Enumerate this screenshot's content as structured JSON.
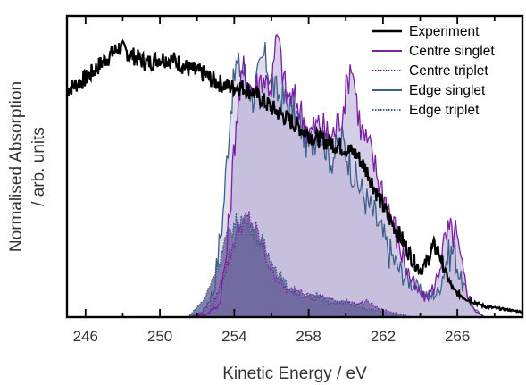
{
  "chart_data": {
    "type": "area",
    "title": "",
    "xlabel": "Kinetic Energy / eV",
    "ylabel_lines": [
      "Normalised Absorption",
      "/ arb. units"
    ],
    "xlim": [
      245,
      269.5
    ],
    "ylim": [
      0,
      1.15
    ],
    "yticks_shown": false,
    "grid": false,
    "legend_position": "top-right",
    "xticks": [
      246,
      250,
      254,
      258,
      262,
      266
    ],
    "xtick_labels": [
      "246",
      "250",
      "254",
      "258",
      "262",
      "266"
    ],
    "series": [
      {
        "name": "Experiment",
        "style": "solid",
        "fill": false,
        "color": "#000000",
        "points": [
          [
            245.0,
            0.87
          ],
          [
            246.0,
            0.91
          ],
          [
            247.0,
            0.98
          ],
          [
            247.8,
            1.03
          ],
          [
            248.5,
            1.0
          ],
          [
            249.3,
            0.97
          ],
          [
            250.0,
            0.99
          ],
          [
            250.8,
            0.98
          ],
          [
            251.5,
            0.95
          ],
          [
            252.3,
            0.93
          ],
          [
            253.0,
            0.9
          ],
          [
            253.7,
            0.88
          ],
          [
            254.4,
            0.88
          ],
          [
            255.0,
            0.86
          ],
          [
            255.8,
            0.81
          ],
          [
            256.6,
            0.77
          ],
          [
            257.4,
            0.73
          ],
          [
            258.2,
            0.69
          ],
          [
            259.0,
            0.67
          ],
          [
            259.8,
            0.65
          ],
          [
            260.6,
            0.62
          ],
          [
            261.2,
            0.55
          ],
          [
            261.8,
            0.45
          ],
          [
            262.4,
            0.37
          ],
          [
            263.0,
            0.3
          ],
          [
            263.6,
            0.22
          ],
          [
            264.0,
            0.18
          ],
          [
            264.3,
            0.2
          ],
          [
            264.7,
            0.27
          ],
          [
            265.0,
            0.25
          ],
          [
            265.4,
            0.16
          ],
          [
            265.8,
            0.1
          ],
          [
            266.5,
            0.07
          ],
          [
            267.5,
            0.04
          ],
          [
            268.5,
            0.03
          ],
          [
            269.5,
            0.02
          ]
        ]
      },
      {
        "name": "Centre singlet",
        "style": "solid",
        "fill": true,
        "color": "#7b1fa2",
        "fill_color": "#b3a6d4",
        "points": [
          [
            251.5,
            0.0
          ],
          [
            252.5,
            0.01
          ],
          [
            253.2,
            0.05
          ],
          [
            253.6,
            0.25
          ],
          [
            253.9,
            0.55
          ],
          [
            254.1,
            0.75
          ],
          [
            254.5,
            0.95
          ],
          [
            255.0,
            0.86
          ],
          [
            255.5,
            0.92
          ],
          [
            256.0,
            0.88
          ],
          [
            256.3,
            1.08
          ],
          [
            256.8,
            0.85
          ],
          [
            257.4,
            0.82
          ],
          [
            258.0,
            0.7
          ],
          [
            258.6,
            0.74
          ],
          [
            259.2,
            0.68
          ],
          [
            259.8,
            0.78
          ],
          [
            260.3,
            0.98
          ],
          [
            260.8,
            0.72
          ],
          [
            261.3,
            0.64
          ],
          [
            261.8,
            0.52
          ],
          [
            262.3,
            0.42
          ],
          [
            262.8,
            0.3
          ],
          [
            263.3,
            0.18
          ],
          [
            263.8,
            0.1
          ],
          [
            264.3,
            0.07
          ],
          [
            264.8,
            0.12
          ],
          [
            265.2,
            0.25
          ],
          [
            265.5,
            0.32
          ],
          [
            265.9,
            0.32
          ],
          [
            266.2,
            0.2
          ],
          [
            266.6,
            0.08
          ],
          [
            267.0,
            0.02
          ],
          [
            267.5,
            0.0
          ]
        ]
      },
      {
        "name": "Centre triplet",
        "style": "dotted",
        "fill": true,
        "color": "#7b1fa2",
        "fill_color": "#7a66a6",
        "points": [
          [
            252.0,
            0.0
          ],
          [
            253.0,
            0.07
          ],
          [
            253.6,
            0.2
          ],
          [
            254.2,
            0.34
          ],
          [
            254.8,
            0.38
          ],
          [
            255.3,
            0.31
          ],
          [
            255.8,
            0.21
          ],
          [
            256.4,
            0.14
          ],
          [
            257.0,
            0.09
          ],
          [
            257.6,
            0.11
          ],
          [
            258.2,
            0.07
          ],
          [
            258.8,
            0.08
          ],
          [
            259.4,
            0.06
          ],
          [
            260.0,
            0.06
          ],
          [
            260.6,
            0.05
          ],
          [
            261.2,
            0.06
          ],
          [
            261.8,
            0.03
          ],
          [
            262.5,
            0.02
          ],
          [
            263.5,
            0.0
          ]
        ]
      },
      {
        "name": "Edge singlet",
        "style": "solid",
        "fill": true,
        "color": "#3f5f8a",
        "fill_color": "#c7c2dc",
        "points": [
          [
            251.5,
            0.0
          ],
          [
            252.3,
            0.02
          ],
          [
            252.9,
            0.1
          ],
          [
            253.4,
            0.4
          ],
          [
            253.8,
            0.8
          ],
          [
            254.1,
            0.96
          ],
          [
            254.5,
            0.94
          ],
          [
            255.0,
            0.84
          ],
          [
            255.6,
            1.0
          ],
          [
            256.2,
            0.86
          ],
          [
            256.8,
            0.82
          ],
          [
            257.4,
            0.76
          ],
          [
            258.0,
            0.65
          ],
          [
            258.6,
            0.72
          ],
          [
            259.2,
            0.6
          ],
          [
            259.8,
            0.68
          ],
          [
            260.4,
            0.55
          ],
          [
            261.0,
            0.46
          ],
          [
            261.6,
            0.38
          ],
          [
            262.2,
            0.27
          ],
          [
            262.8,
            0.19
          ],
          [
            263.4,
            0.14
          ],
          [
            264.0,
            0.1
          ],
          [
            264.6,
            0.08
          ],
          [
            265.0,
            0.1
          ],
          [
            265.4,
            0.22
          ],
          [
            265.8,
            0.26
          ],
          [
            266.2,
            0.14
          ],
          [
            266.8,
            0.04
          ],
          [
            267.4,
            0.0
          ]
        ]
      },
      {
        "name": "Edge triplet",
        "style": "dotted",
        "fill": true,
        "color": "#3f5f8a",
        "fill_color": "#6e6aa0",
        "points": [
          [
            251.5,
            0.0
          ],
          [
            252.4,
            0.07
          ],
          [
            253.1,
            0.2
          ],
          [
            253.7,
            0.32
          ],
          [
            254.3,
            0.38
          ],
          [
            254.9,
            0.35
          ],
          [
            255.5,
            0.28
          ],
          [
            256.1,
            0.2
          ],
          [
            256.7,
            0.13
          ],
          [
            257.3,
            0.1
          ],
          [
            257.9,
            0.07
          ],
          [
            258.5,
            0.09
          ],
          [
            259.1,
            0.05
          ],
          [
            259.8,
            0.06
          ],
          [
            260.5,
            0.04
          ],
          [
            261.2,
            0.03
          ],
          [
            262.0,
            0.02
          ],
          [
            263.0,
            0.0
          ]
        ]
      }
    ]
  }
}
